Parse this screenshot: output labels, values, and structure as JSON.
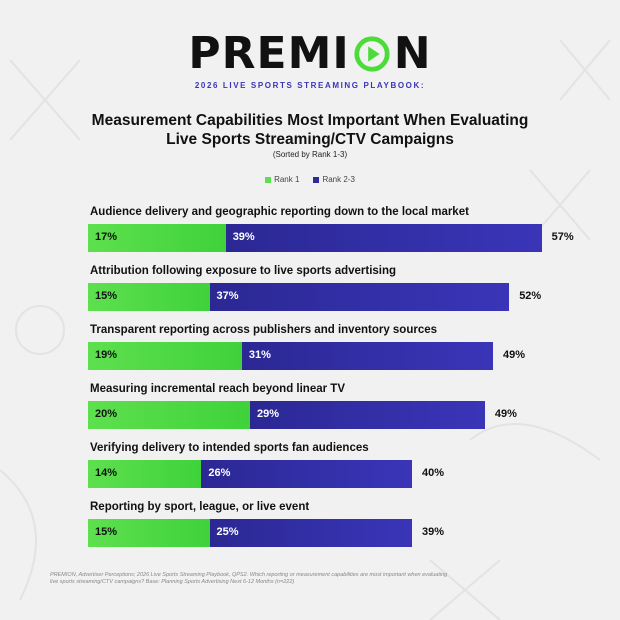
{
  "brand": {
    "name_part1": "PREMI",
    "name_part2": "N"
  },
  "subtitle": "2026 LIVE SPORTS STREAMING PLAYBOOK:",
  "title_line1": "Measurement Capabilities Most Important When Evaluating",
  "title_line2": "Live Sports Streaming/CTV Campaigns",
  "sort_note": "(Sorted by Rank 1-3)",
  "legend": [
    {
      "label": "Rank 1",
      "color": "#5ee04e"
    },
    {
      "label": "Rank 2-3",
      "color": "#2e2a97"
    }
  ],
  "footnote": "PREMION, Advertiser Perceptions; 2026 Live Sports Streaming Playbook, QPS2. Which reporting or measurement capabilities are most important when evaluating live sports streaming/CTV campaigns? Base: Planning Sports Advertising Next 6-12 Months (n=222)",
  "chart_data": {
    "type": "bar",
    "orientation": "horizontal",
    "stacked": true,
    "title": "Measurement Capabilities Most Important When Evaluating Live Sports Streaming/CTV Campaigns",
    "subtitle": "(Sorted by Rank 1-3)",
    "categories": [
      "Audience delivery and geographic reporting down to the local market",
      "Attribution following exposure to live sports advertising",
      "Transparent reporting across publishers and inventory sources",
      "Measuring incremental reach beyond linear TV",
      "Verifying delivery to intended sports fan audiences",
      "Reporting by sport, league, or live event"
    ],
    "series": [
      {
        "name": "Rank 1",
        "values": [
          17,
          15,
          19,
          20,
          14,
          15
        ],
        "labels": [
          "17%",
          "15%",
          "19%",
          "20%",
          "14%",
          "15%"
        ]
      },
      {
        "name": "Rank 2-3",
        "values": [
          39,
          37,
          31,
          29,
          26,
          25
        ],
        "labels": [
          "39%",
          "37%",
          "31%",
          "29%",
          "26%",
          "25%"
        ]
      }
    ],
    "totals": [
      57,
      52,
      49,
      49,
      40,
      39
    ],
    "total_labels": [
      "57%",
      "52%",
      "49%",
      "49%",
      "40%",
      "39%"
    ],
    "legend_position": "top",
    "grid": false
  }
}
